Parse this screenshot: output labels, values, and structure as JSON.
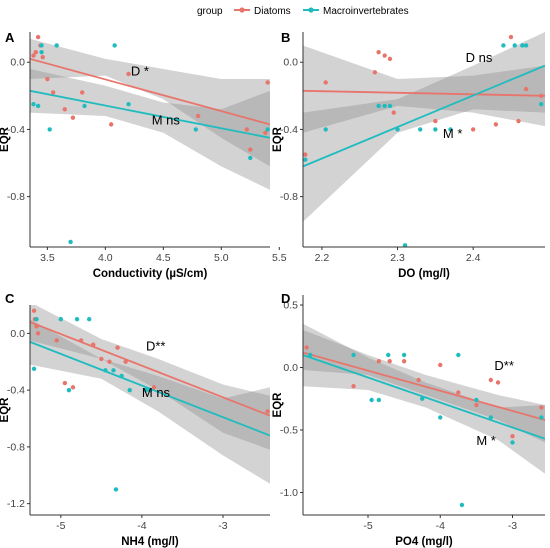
{
  "legend": {
    "title": "group",
    "entries": [
      {
        "name": "Diatoms",
        "color": "#e8756c"
      },
      {
        "name": "Macroinvertebrates",
        "color": "#1fbcbf"
      }
    ]
  },
  "colors": {
    "diatoms": "#e8756c",
    "macro": "#1fbcbf",
    "band": "#8c8c8c",
    "background": "#ffffff"
  },
  "chart_data": [
    {
      "id": "A",
      "type": "scatter",
      "letter": "A",
      "xlabel": "Conductivity  (µS/cm)",
      "ylabel": "EQR",
      "xlim": [
        3.35,
        5.42
      ],
      "ylim": [
        -1.1,
        0.18
      ],
      "xticks": [
        3.5,
        4.0,
        4.5,
        5.0,
        5.5
      ],
      "xtick_labels": [
        "3.5",
        "4.0",
        "4.5",
        "5.0",
        "5.5"
      ],
      "yticks": [
        0.0,
        -0.4,
        -0.8
      ],
      "ytick_labels": [
        "0.0",
        "-0.4",
        "-0.8"
      ],
      "grid": false,
      "annotations": [
        {
          "text": "D *",
          "x": 4.22,
          "y": -0.08
        },
        {
          "text": "M ns",
          "x": 4.4,
          "y": -0.37
        }
      ],
      "series": [
        {
          "name": "Diatoms",
          "color": "#e8756c",
          "points": [
            [
              3.38,
              0.04
            ],
            [
              3.4,
              0.06
            ],
            [
              3.42,
              0.15
            ],
            [
              3.44,
              0.1
            ],
            [
              3.46,
              0.03
            ],
            [
              3.5,
              -0.1
            ],
            [
              3.55,
              -0.18
            ],
            [
              3.65,
              -0.28
            ],
            [
              3.72,
              -0.33
            ],
            [
              3.8,
              -0.18
            ],
            [
              4.05,
              -0.37
            ],
            [
              4.2,
              -0.07
            ],
            [
              4.8,
              -0.32
            ],
            [
              5.22,
              -0.4
            ],
            [
              5.25,
              -0.52
            ],
            [
              5.38,
              -0.42
            ],
            [
              5.4,
              -0.12
            ]
          ],
          "fit": [
            [
              3.35,
              0.02
            ],
            [
              5.42,
              -0.37
            ]
          ],
          "band": [
            [
              3.35,
              -0.1,
              0.14
            ],
            [
              4.0,
              -0.08,
              0.02
            ],
            [
              4.5,
              -0.22,
              -0.04
            ],
            [
              5.0,
              -0.45,
              -0.1
            ],
            [
              5.42,
              -0.62,
              -0.1
            ]
          ]
        },
        {
          "name": "Macroinvertebrates",
          "color": "#1fbcbf",
          "points": [
            [
              3.38,
              -0.25
            ],
            [
              3.42,
              -0.26
            ],
            [
              3.45,
              0.1
            ],
            [
              3.45,
              0.06
            ],
            [
              3.52,
              -0.4
            ],
            [
              3.58,
              0.1
            ],
            [
              3.7,
              -1.07
            ],
            [
              3.82,
              -0.26
            ],
            [
              4.08,
              0.1
            ],
            [
              4.2,
              -0.25
            ],
            [
              4.78,
              -0.4
            ],
            [
              5.25,
              -0.57
            ],
            [
              5.4,
              -0.4
            ]
          ],
          "fit": [
            [
              3.35,
              -0.17
            ],
            [
              5.42,
              -0.45
            ]
          ],
          "band": [
            [
              3.35,
              -0.3,
              -0.04
            ],
            [
              4.0,
              -0.32,
              -0.14
            ],
            [
              4.5,
              -0.42,
              -0.24
            ],
            [
              5.0,
              -0.62,
              -0.28
            ],
            [
              5.42,
              -0.76,
              -0.17
            ]
          ]
        }
      ]
    },
    {
      "id": "B",
      "type": "scatter",
      "letter": "B",
      "xlabel": "DO (mg/l)",
      "ylabel": "EQR",
      "xlim": [
        2.175,
        2.495
      ],
      "ylim": [
        -1.1,
        0.18
      ],
      "xticks": [
        2.2,
        2.3,
        2.4
      ],
      "xtick_labels": [
        "2.2",
        "2.3",
        "2.4"
      ],
      "yticks": [
        0.0,
        -0.4,
        -0.8
      ],
      "ytick_labels": [
        "0.0",
        "-0.4",
        "-0.8"
      ],
      "grid": false,
      "annotations": [
        {
          "text": "D ns",
          "x": 2.39,
          "y": 0.0
        },
        {
          "text": "M *",
          "x": 2.36,
          "y": -0.45
        }
      ],
      "series": [
        {
          "name": "Diatoms",
          "color": "#e8756c",
          "points": [
            [
              2.178,
              -0.55
            ],
            [
              2.205,
              -0.12
            ],
            [
              2.27,
              -0.06
            ],
            [
              2.275,
              0.06
            ],
            [
              2.283,
              0.04
            ],
            [
              2.29,
              0.02
            ],
            [
              2.295,
              -0.3
            ],
            [
              2.35,
              -0.35
            ],
            [
              2.4,
              -0.4
            ],
            [
              2.43,
              -0.37
            ],
            [
              2.45,
              0.15
            ],
            [
              2.46,
              -0.35
            ],
            [
              2.47,
              -0.16
            ],
            [
              2.49,
              -0.2
            ]
          ],
          "fit": [
            [
              2.175,
              -0.17
            ],
            [
              2.495,
              -0.2
            ]
          ],
          "band": [
            [
              2.175,
              -0.42,
              0.1
            ],
            [
              2.3,
              -0.26,
              -0.1
            ],
            [
              2.4,
              -0.3,
              -0.08
            ],
            [
              2.495,
              -0.38,
              -0.02
            ]
          ]
        },
        {
          "name": "Macroinvertebrates",
          "color": "#1fbcbf",
          "points": [
            [
              2.178,
              -0.58
            ],
            [
              2.205,
              -0.4
            ],
            [
              2.275,
              -0.26
            ],
            [
              2.283,
              -0.26
            ],
            [
              2.29,
              -0.26
            ],
            [
              2.3,
              -0.4
            ],
            [
              2.31,
              -1.09
            ],
            [
              2.33,
              -0.4
            ],
            [
              2.35,
              -0.4
            ],
            [
              2.37,
              -0.4
            ],
            [
              2.44,
              0.1
            ],
            [
              2.455,
              0.1
            ],
            [
              2.465,
              0.1
            ],
            [
              2.47,
              0.1
            ],
            [
              2.49,
              -0.25
            ]
          ],
          "fit": [
            [
              2.175,
              -0.62
            ],
            [
              2.495,
              -0.02
            ]
          ],
          "band": [
            [
              2.175,
              -0.95,
              -0.3
            ],
            [
              2.3,
              -0.42,
              -0.22
            ],
            [
              2.4,
              -0.28,
              -0.02
            ],
            [
              2.495,
              -0.3,
              0.18
            ]
          ]
        }
      ]
    },
    {
      "id": "C",
      "type": "scatter",
      "letter": "C",
      "xlabel": "NH4 (mg/l)",
      "ylabel": "EQR",
      "xlim": [
        -5.38,
        -2.42
      ],
      "ylim": [
        -1.28,
        0.2
      ],
      "xticks": [
        -5,
        -4,
        -3
      ],
      "xtick_labels": [
        "-5",
        "-4",
        "-3"
      ],
      "yticks": [
        0.0,
        -0.4,
        -0.8,
        -1.2
      ],
      "ytick_labels": [
        "0.0",
        "-0.4",
        "-0.8",
        "-1.2"
      ],
      "grid": false,
      "annotations": [
        {
          "text": "D**",
          "x": -3.95,
          "y": -0.12
        },
        {
          "text": "M ns",
          "x": -4.0,
          "y": -0.45
        }
      ],
      "series": [
        {
          "name": "Diatoms",
          "color": "#e8756c",
          "points": [
            [
              -5.33,
              0.16
            ],
            [
              -5.32,
              0.1
            ],
            [
              -5.3,
              0.05
            ],
            [
              -5.28,
              0.0
            ],
            [
              -5.05,
              -0.05
            ],
            [
              -4.95,
              -0.35
            ],
            [
              -4.85,
              -0.38
            ],
            [
              -4.75,
              -0.05
            ],
            [
              -4.6,
              -0.08
            ],
            [
              -4.5,
              -0.18
            ],
            [
              -4.4,
              -0.2
            ],
            [
              -4.3,
              -0.1
            ],
            [
              -4.2,
              -0.2
            ],
            [
              -3.85,
              -0.38
            ],
            [
              -2.45,
              -0.55
            ]
          ],
          "fit": [
            [
              -5.38,
              0.08
            ],
            [
              -2.42,
              -0.58
            ]
          ],
          "band": [
            [
              -5.38,
              -0.05,
              0.22
            ],
            [
              -4.5,
              -0.18,
              -0.04
            ],
            [
              -3.8,
              -0.4,
              -0.18
            ],
            [
              -3.0,
              -0.7,
              -0.36
            ],
            [
              -2.42,
              -0.82,
              -0.44
            ]
          ]
        },
        {
          "name": "Macroinvertebrates",
          "color": "#1fbcbf",
          "points": [
            [
              -5.33,
              -0.25
            ],
            [
              -5.3,
              0.1
            ],
            [
              -5.0,
              0.1
            ],
            [
              -4.8,
              0.1
            ],
            [
              -4.65,
              0.1
            ],
            [
              -4.9,
              -0.4
            ],
            [
              -4.45,
              -0.26
            ],
            [
              -4.35,
              -0.26
            ],
            [
              -4.32,
              -1.1
            ],
            [
              -4.25,
              -0.3
            ],
            [
              -4.15,
              -0.4
            ],
            [
              -3.95,
              -0.4
            ],
            [
              -3.9,
              -0.4
            ]
          ],
          "fit": [
            [
              -5.38,
              -0.06
            ],
            [
              -2.42,
              -0.72
            ]
          ],
          "band": [
            [
              -5.38,
              -0.22,
              0.1
            ],
            [
              -4.5,
              -0.32,
              -0.18
            ],
            [
              -3.8,
              -0.55,
              -0.3
            ],
            [
              -3.0,
              -0.86,
              -0.46
            ],
            [
              -2.42,
              -1.06,
              -0.38
            ]
          ]
        }
      ]
    },
    {
      "id": "D",
      "type": "scatter",
      "letter": "D",
      "xlabel": "PO4 (mg/l)",
      "ylabel": "EQR",
      "xlim": [
        -5.9,
        -2.55
      ],
      "ylim": [
        -1.18,
        0.58
      ],
      "xticks": [
        -5,
        -4,
        -3
      ],
      "xtick_labels": [
        "-5",
        "-4",
        "-3"
      ],
      "yticks": [
        0.5,
        0.0,
        -0.5,
        -1.0
      ],
      "ytick_labels": [
        "0.5",
        "0.0",
        "-0.5",
        "-1.0"
      ],
      "grid": false,
      "annotations": [
        {
          "text": "D**",
          "x": -3.25,
          "y": -0.02
        },
        {
          "text": "M *",
          "x": -3.5,
          "y": -0.62
        }
      ],
      "series": [
        {
          "name": "Diatoms",
          "color": "#e8756c",
          "points": [
            [
              -5.85,
              0.16
            ],
            [
              -5.2,
              -0.15
            ],
            [
              -4.85,
              0.05
            ],
            [
              -4.7,
              0.05
            ],
            [
              -4.5,
              0.05
            ],
            [
              -4.3,
              -0.1
            ],
            [
              -4.0,
              0.02
            ],
            [
              -3.75,
              -0.2
            ],
            [
              -3.5,
              -0.3
            ],
            [
              -3.3,
              -0.1
            ],
            [
              -3.2,
              -0.12
            ],
            [
              -3.0,
              -0.55
            ],
            [
              -2.6,
              -0.32
            ]
          ],
          "fit": [
            [
              -5.9,
              0.12
            ],
            [
              -2.55,
              -0.42
            ]
          ],
          "band": [
            [
              -5.9,
              -0.02,
              0.3
            ],
            [
              -5.0,
              -0.06,
              0.1
            ],
            [
              -4.2,
              -0.22,
              -0.06
            ],
            [
              -3.2,
              -0.42,
              -0.22
            ],
            [
              -2.55,
              -0.6,
              -0.3
            ]
          ]
        },
        {
          "name": "Macroinvertebrates",
          "color": "#1fbcbf",
          "points": [
            [
              -5.8,
              0.1
            ],
            [
              -5.2,
              0.1
            ],
            [
              -4.95,
              -0.26
            ],
            [
              -4.85,
              -0.26
            ],
            [
              -4.72,
              0.1
            ],
            [
              -4.5,
              0.1
            ],
            [
              -4.25,
              -0.25
            ],
            [
              -4.0,
              -0.4
            ],
            [
              -3.75,
              0.1
            ],
            [
              -3.7,
              -1.1
            ],
            [
              -3.5,
              -0.26
            ],
            [
              -3.3,
              -0.4
            ],
            [
              -3.0,
              -0.6
            ],
            [
              -2.6,
              -0.4
            ]
          ],
          "fit": [
            [
              -5.9,
              0.1
            ],
            [
              -2.55,
              -0.57
            ]
          ],
          "band": [
            [
              -5.9,
              -0.15,
              0.35
            ],
            [
              -5.0,
              -0.18,
              0.08
            ],
            [
              -4.2,
              -0.32,
              -0.12
            ],
            [
              -3.2,
              -0.58,
              -0.32
            ],
            [
              -2.55,
              -0.85,
              -0.3
            ]
          ]
        }
      ]
    }
  ]
}
